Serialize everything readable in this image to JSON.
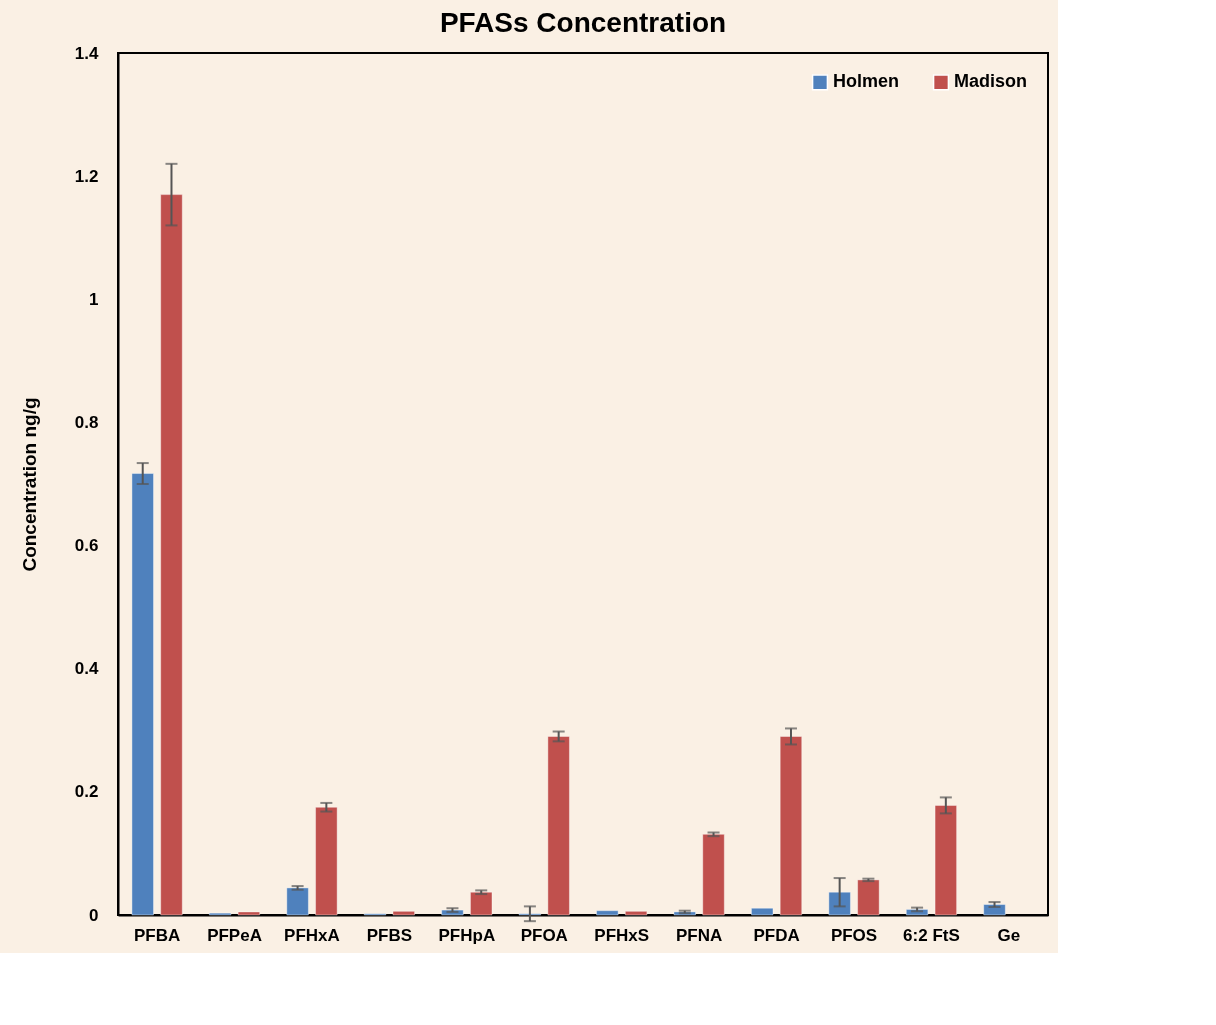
{
  "chart_data": {
    "type": "bar",
    "title": "PFASs Concentration",
    "ylabel": "Concentration ng/g",
    "categories": [
      "PFBA",
      "PFPeA",
      "PFHxA",
      "PFBS",
      "PFHpA",
      "PFOA",
      "PFHxS",
      "PFNA",
      "PFDA",
      "PFOS",
      "6:2 FtS",
      "Ge"
    ],
    "series": [
      {
        "name": "Holmen",
        "color": "#4f81bd",
        "values": [
          0.717,
          0.003,
          0.044,
          0.002,
          0.008,
          0.002,
          0.007,
          0.005,
          0.011,
          0.037,
          0.009,
          0.017
        ],
        "errors": [
          0.017,
          null,
          0.003,
          null,
          0.003,
          0.012,
          null,
          0.002,
          null,
          0.023,
          0.003,
          0.004
        ]
      },
      {
        "name": "Madison",
        "color": "#c0504d",
        "values": [
          1.17,
          0.005,
          0.175,
          0.006,
          0.037,
          0.29,
          0.006,
          0.131,
          0.29,
          0.057,
          0.178,
          null
        ],
        "errors": [
          0.05,
          null,
          0.007,
          null,
          0.003,
          0.008,
          null,
          0.003,
          0.013,
          0.002,
          0.013,
          null
        ]
      }
    ],
    "ylim": [
      0,
      1.4
    ],
    "yticks": [
      0,
      0.2,
      0.4,
      0.6,
      0.8,
      1,
      1.2,
      1.4
    ],
    "grid": false,
    "legend": "top right"
  }
}
